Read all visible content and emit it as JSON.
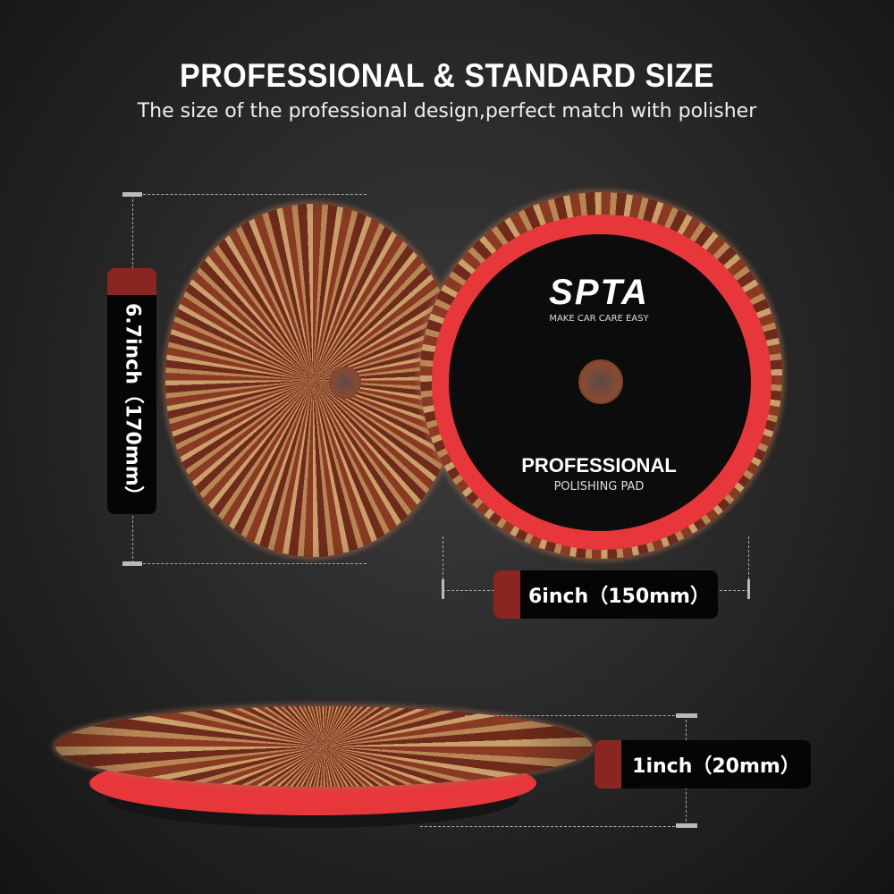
{
  "header": {
    "title": "PROFESSIONAL & STANDARD SIZE",
    "subtitle": "The size of the professional design,perfect match with polisher"
  },
  "pad_logo": {
    "brand": "SPTA",
    "tagline": "MAKE CAR CARE EASY",
    "line1": "PROFESSIONAL",
    "line2": "POLISHING PAD"
  },
  "dimensions": {
    "diameter_outer": "6.7inch（170mm）",
    "diameter_backing": "6inch（150mm）",
    "thickness": "1inch（20mm）"
  },
  "colors": {
    "accent_red": "#8b2522",
    "backing_red": "#e8373a",
    "background": "#2a2a2a"
  }
}
